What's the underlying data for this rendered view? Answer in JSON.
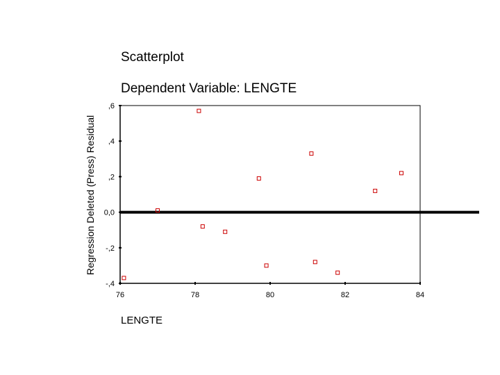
{
  "chart_data": {
    "type": "scatter",
    "title": "Scatterplot",
    "subtitle": "Dependent Variable: LENGTE",
    "xlabel": "LENGTE",
    "ylabel": "Regression Deleted (Press) Residual",
    "xlim": [
      76,
      84
    ],
    "ylim": [
      -0.4,
      0.6
    ],
    "x_ticks": [
      76,
      78,
      80,
      82,
      84
    ],
    "x_tick_labels": [
      "76",
      "78",
      "80",
      "82",
      "84"
    ],
    "y_ticks": [
      0.6,
      0.4,
      0.2,
      0.0,
      -0.2,
      -0.4
    ],
    "y_tick_labels": [
      ",6",
      ",4",
      ",2",
      "0,0",
      "-,2",
      "-,4"
    ],
    "reference_line_y": 0.0,
    "grid": false,
    "marker": "hollow-square",
    "marker_color": "#cc0000",
    "points": [
      {
        "x": 76.1,
        "y": -0.37
      },
      {
        "x": 77.0,
        "y": 0.01
      },
      {
        "x": 78.1,
        "y": 0.57
      },
      {
        "x": 78.2,
        "y": -0.08
      },
      {
        "x": 78.8,
        "y": -0.11
      },
      {
        "x": 79.7,
        "y": 0.19
      },
      {
        "x": 79.9,
        "y": -0.3
      },
      {
        "x": 81.1,
        "y": 0.33
      },
      {
        "x": 81.2,
        "y": -0.28
      },
      {
        "x": 81.8,
        "y": -0.34
      },
      {
        "x": 82.8,
        "y": 0.12
      },
      {
        "x": 83.5,
        "y": 0.22
      }
    ]
  }
}
